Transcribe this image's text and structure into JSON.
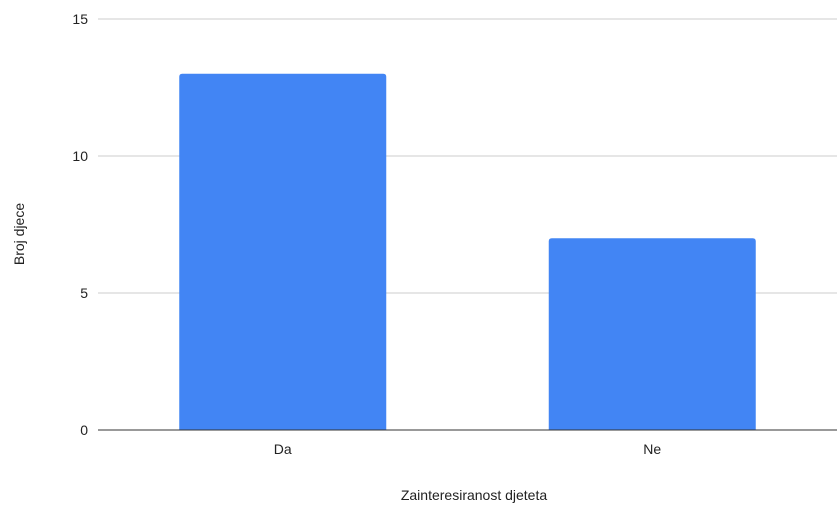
{
  "chart_data": {
    "type": "bar",
    "title": "",
    "xlabel": "Zainteresiranost djeteta",
    "ylabel": "Broj djece",
    "categories": [
      "Da",
      "Ne"
    ],
    "values": [
      13,
      7
    ],
    "ylim": [
      0,
      15
    ],
    "yticks": [
      0,
      5,
      10,
      15
    ],
    "grid": true,
    "legend": "none",
    "bar_color": "#4285f4",
    "grid_color": "#cccccc",
    "axis_color": "#333333"
  }
}
